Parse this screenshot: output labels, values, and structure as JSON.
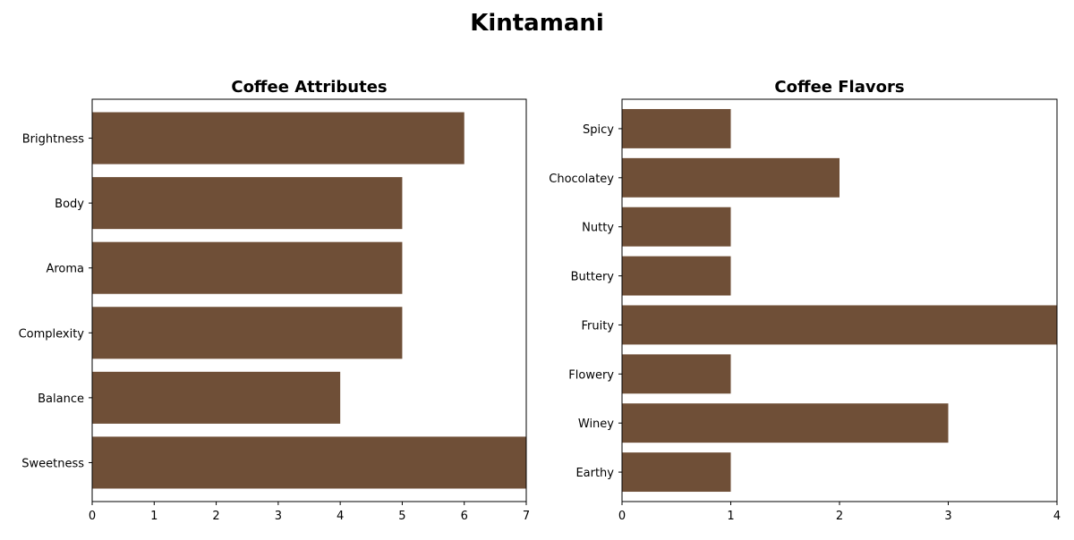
{
  "figure": {
    "title": "Kintamani"
  },
  "colors": {
    "bar": "#6f4f37",
    "axis": "#000000",
    "background": "#ffffff"
  },
  "chart_data": [
    {
      "type": "bar",
      "orientation": "horizontal",
      "title": "Coffee Attributes",
      "xlabel": "",
      "ylabel": "",
      "categories": [
        "Brightness",
        "Body",
        "Aroma",
        "Complexity",
        "Balance",
        "Sweetness"
      ],
      "values": [
        6,
        5,
        5,
        5,
        4,
        7
      ],
      "xlim": [
        0,
        7
      ],
      "xticks": [
        0,
        1,
        2,
        3,
        4,
        5,
        6,
        7
      ],
      "grid": false
    },
    {
      "type": "bar",
      "orientation": "horizontal",
      "title": "Coffee Flavors",
      "xlabel": "",
      "ylabel": "",
      "categories": [
        "Spicy",
        "Chocolatey",
        "Nutty",
        "Buttery",
        "Fruity",
        "Flowery",
        "Winey",
        "Earthy"
      ],
      "values": [
        1,
        2,
        1,
        1,
        4,
        1,
        3,
        1
      ],
      "xlim": [
        0,
        4
      ],
      "xticks": [
        0,
        1,
        2,
        3,
        4
      ],
      "grid": false
    }
  ]
}
